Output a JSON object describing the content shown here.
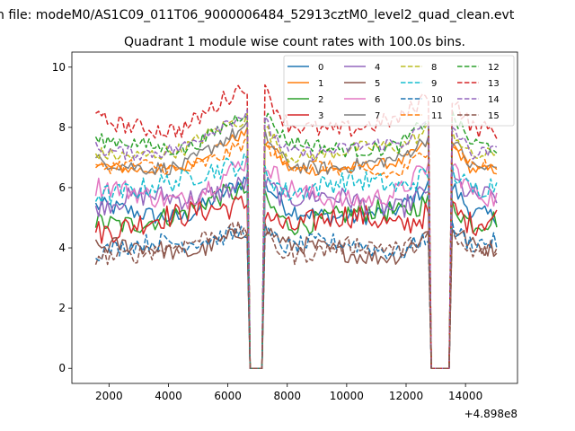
{
  "chart_data": {
    "type": "line",
    "suptitle": "n file: modeM0/AS1C09_011T06_9000006484_52913cztM0_level2_quad_clean.evt",
    "title": "Quadrant 1 module wise count rates with 100.0s bins.",
    "xlabel": "",
    "ylabel": "",
    "x_offset_label": "+4.898e8",
    "xlim": [
      750,
      15750
    ],
    "ylim": [
      -0.5,
      10.5
    ],
    "xticks": [
      2000,
      4000,
      6000,
      8000,
      10000,
      12000,
      14000
    ],
    "yticks": [
      0,
      2,
      4,
      6,
      8,
      10
    ],
    "x_start": 1550,
    "x_step": 100,
    "bins": 136,
    "gap_intervals": [
      [
        6750,
        7150
      ],
      [
        12850,
        13450
      ]
    ],
    "legend_location": "upper right",
    "series": [
      {
        "name": "0",
        "color": "#1f77b4",
        "linestyle": "solid",
        "mean": 5.2,
        "wave": 0.5
      },
      {
        "name": "1",
        "color": "#ff7f0e",
        "linestyle": "solid",
        "mean": 6.7,
        "wave": 0.3
      },
      {
        "name": "2",
        "color": "#2ca02c",
        "linestyle": "solid",
        "mean": 5.0,
        "wave": 0.6
      },
      {
        "name": "3",
        "color": "#d62728",
        "linestyle": "solid",
        "mean": 4.8,
        "wave": 0.7
      },
      {
        "name": "4",
        "color": "#9467bd",
        "linestyle": "solid",
        "mean": 5.5,
        "wave": 0.6
      },
      {
        "name": "5",
        "color": "#8c564b",
        "linestyle": "solid",
        "mean": 3.9,
        "wave": 0.5
      },
      {
        "name": "6",
        "color": "#e377c2",
        "linestyle": "solid",
        "mean": 5.8,
        "wave": 0.6
      },
      {
        "name": "7",
        "color": "#7f7f7f",
        "linestyle": "solid",
        "mean": 6.8,
        "wave": 0.4
      },
      {
        "name": "8",
        "color": "#bcbd22",
        "linestyle": "dashed",
        "mean": 7.2,
        "wave": 0.4
      },
      {
        "name": "9",
        "color": "#17becf",
        "linestyle": "dashed",
        "mean": 6.0,
        "wave": 0.6
      },
      {
        "name": "10",
        "color": "#1f77b4",
        "linestyle": "dashed",
        "mean": 4.0,
        "wave": 0.5
      },
      {
        "name": "11",
        "color": "#ff7f0e",
        "linestyle": "dashed",
        "mean": 6.6,
        "wave": 0.4
      },
      {
        "name": "12",
        "color": "#2ca02c",
        "linestyle": "dashed",
        "mean": 7.4,
        "wave": 0.4
      },
      {
        "name": "13",
        "color": "#d62728",
        "linestyle": "dashed",
        "mean": 8.1,
        "wave": 0.5
      },
      {
        "name": "14",
        "color": "#9467bd",
        "linestyle": "dashed",
        "mean": 7.3,
        "wave": 0.4
      },
      {
        "name": "15",
        "color": "#8c564b",
        "linestyle": "dashed",
        "mean": 3.9,
        "wave": 0.5
      }
    ]
  }
}
